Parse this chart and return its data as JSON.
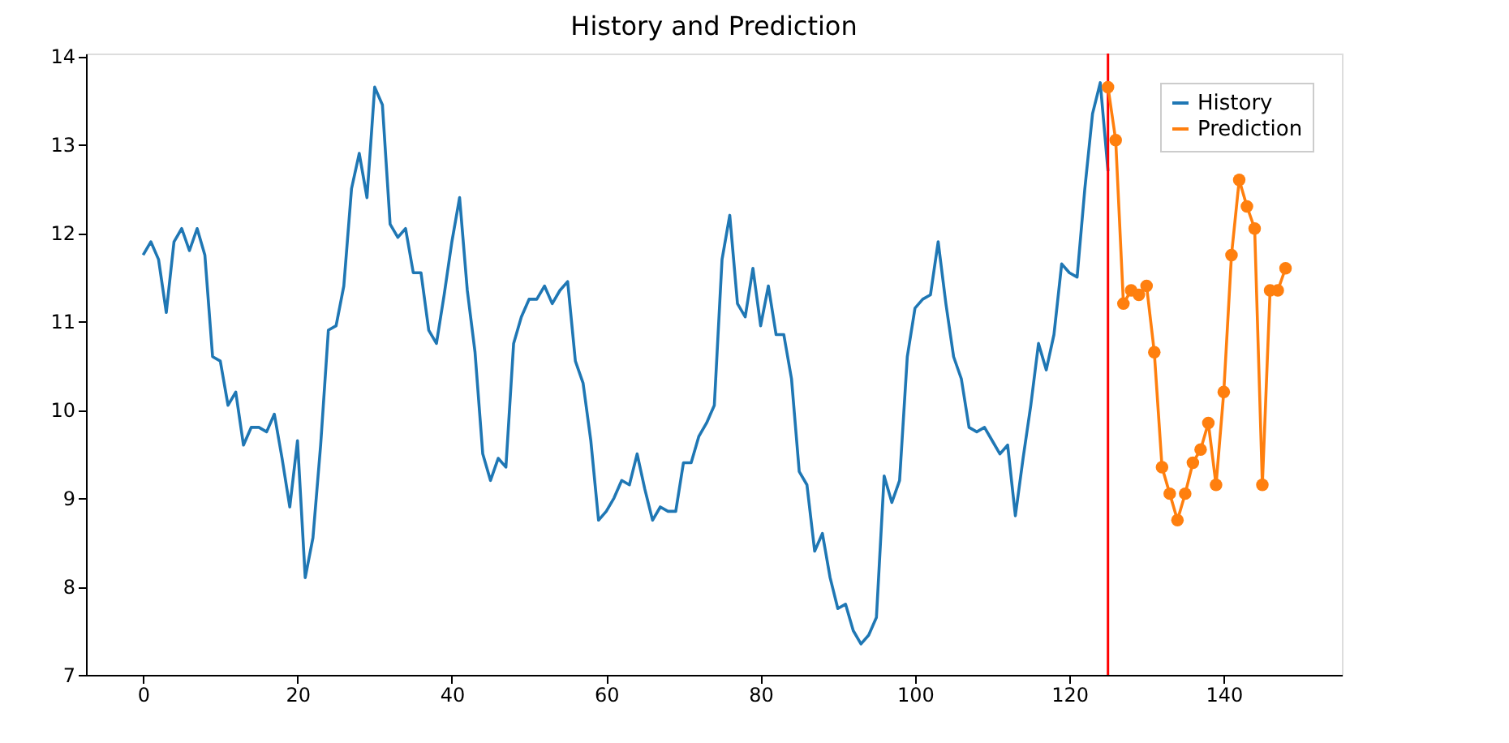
{
  "chart_data": {
    "type": "line",
    "title": "History and Prediction",
    "xlim": [
      -7.4,
      155.3
    ],
    "ylim": [
      7,
      14.03
    ],
    "xticks": [
      0,
      20,
      40,
      60,
      80,
      100,
      120,
      140
    ],
    "yticks": [
      7,
      8,
      9,
      10,
      11,
      12,
      13,
      14
    ],
    "grid": false,
    "legend": "top right",
    "ref_lines": [
      {
        "axis": "x",
        "value": 125,
        "color": "#ff0000"
      }
    ],
    "series": [
      {
        "name": "History",
        "color": "#1f77b4",
        "marker": "none",
        "x": [
          0,
          1,
          2,
          3,
          4,
          5,
          6,
          7,
          8,
          9,
          10,
          11,
          12,
          13,
          14,
          15,
          16,
          17,
          18,
          19,
          20,
          21,
          22,
          23,
          24,
          25,
          26,
          27,
          28,
          29,
          30,
          31,
          32,
          33,
          34,
          35,
          36,
          37,
          38,
          39,
          40,
          41,
          42,
          43,
          44,
          45,
          46,
          47,
          48,
          49,
          50,
          51,
          52,
          53,
          54,
          55,
          56,
          57,
          58,
          59,
          60,
          61,
          62,
          63,
          64,
          65,
          66,
          67,
          68,
          69,
          70,
          71,
          72,
          73,
          74,
          75,
          76,
          77,
          78,
          79,
          80,
          81,
          82,
          83,
          84,
          85,
          86,
          87,
          88,
          89,
          90,
          91,
          92,
          93,
          94,
          95,
          96,
          97,
          98,
          99,
          100,
          101,
          102,
          103,
          104,
          105,
          106,
          107,
          108,
          109,
          110,
          111,
          112,
          113,
          114,
          115,
          116,
          117,
          118,
          119,
          120,
          121,
          122,
          123,
          124,
          125
        ],
        "values": [
          11.75,
          11.9,
          11.7,
          11.1,
          11.9,
          12.05,
          11.8,
          12.05,
          11.75,
          10.6,
          10.55,
          10.05,
          10.2,
          9.6,
          9.8,
          9.8,
          9.75,
          9.95,
          9.45,
          8.9,
          9.65,
          8.1,
          8.55,
          9.6,
          10.9,
          10.95,
          11.4,
          12.5,
          12.9,
          12.4,
          13.65,
          13.45,
          12.1,
          11.95,
          12.05,
          11.55,
          11.55,
          10.9,
          10.75,
          11.3,
          11.9,
          12.4,
          11.35,
          10.65,
          9.5,
          9.2,
          9.45,
          9.35,
          10.75,
          11.05,
          11.25,
          11.25,
          11.4,
          11.2,
          11.35,
          11.45,
          10.55,
          10.3,
          9.65,
          8.75,
          8.85,
          9.0,
          9.2,
          9.15,
          9.5,
          9.1,
          8.75,
          8.9,
          8.85,
          8.85,
          9.4,
          9.4,
          9.7,
          9.85,
          10.05,
          11.7,
          12.2,
          11.2,
          11.05,
          11.6,
          10.95,
          11.4,
          10.85,
          10.85,
          10.35,
          9.3,
          9.15,
          8.4,
          8.6,
          8.1,
          7.75,
          7.8,
          7.5,
          7.35,
          7.45,
          7.65,
          9.25,
          8.95,
          9.2,
          10.6,
          11.15,
          11.25,
          11.3,
          11.9,
          11.2,
          10.6,
          10.35,
          9.8,
          9.75,
          9.8,
          9.65,
          9.5,
          9.6,
          8.8,
          9.45,
          10.05,
          10.75,
          10.45,
          10.85,
          11.65,
          11.55,
          11.5,
          12.5,
          13.35,
          13.7,
          12.7
        ]
      },
      {
        "name": "Prediction",
        "color": "#ff7f0e",
        "marker": "circle",
        "x": [
          125,
          126,
          127,
          128,
          129,
          130,
          131,
          132,
          133,
          134,
          135,
          136,
          137,
          138,
          139,
          140,
          141,
          142,
          143,
          144,
          145,
          146,
          147,
          148
        ],
        "values": [
          13.65,
          13.05,
          11.2,
          11.35,
          11.3,
          11.4,
          10.65,
          9.35,
          9.05,
          8.75,
          9.05,
          9.4,
          9.55,
          9.85,
          9.15,
          10.2,
          11.75,
          12.6,
          12.3,
          12.05,
          9.15,
          11.35,
          11.35,
          11.6
        ]
      }
    ]
  }
}
